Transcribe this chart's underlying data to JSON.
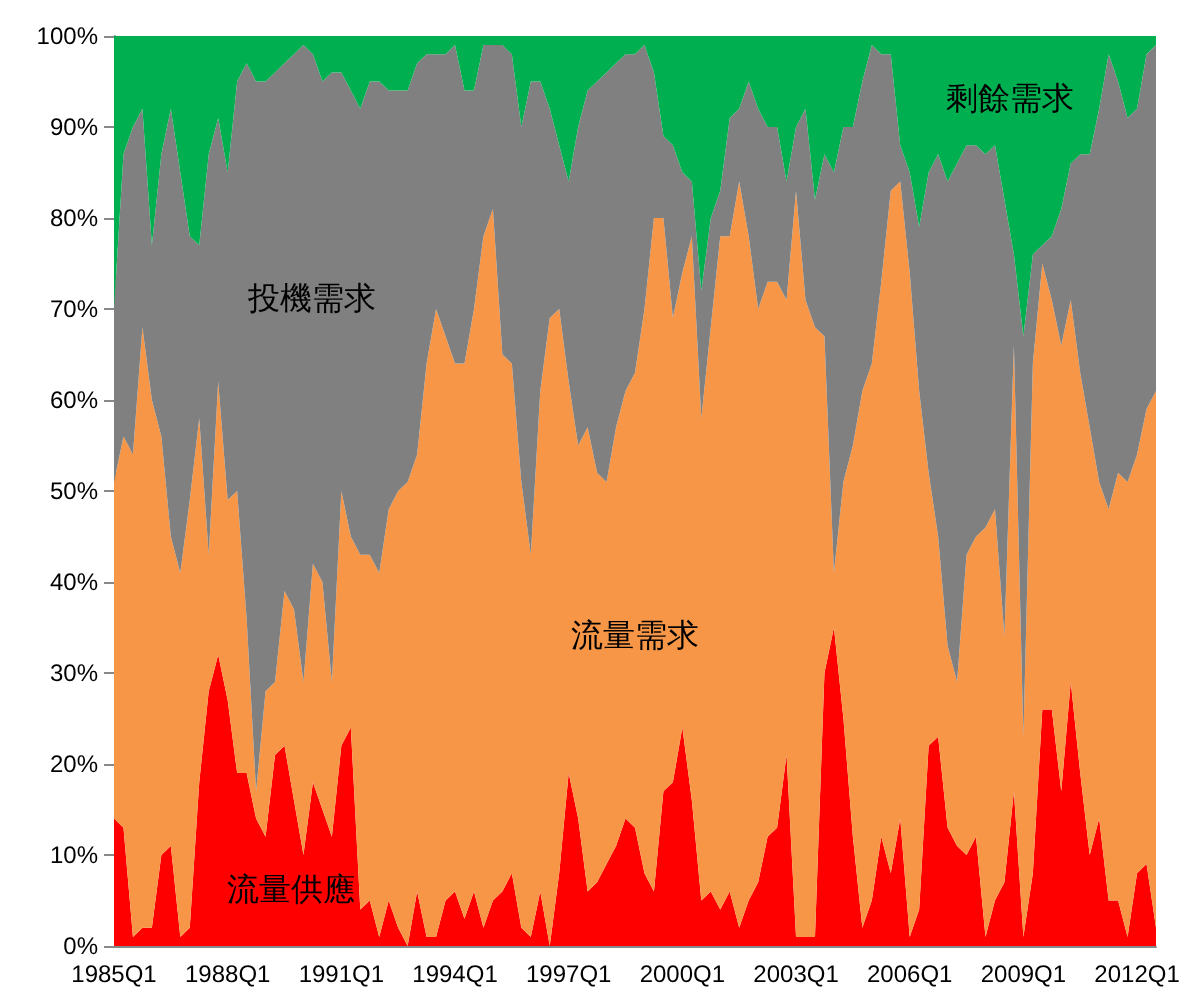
{
  "chart_data": {
    "type": "area",
    "stacked": true,
    "categories": [
      "1985Q1",
      null,
      null,
      null,
      null,
      null,
      null,
      null,
      null,
      null,
      null,
      null,
      "1988Q1",
      null,
      null,
      null,
      null,
      null,
      null,
      null,
      null,
      null,
      null,
      null,
      "1991Q1",
      null,
      null,
      null,
      null,
      null,
      null,
      null,
      null,
      null,
      null,
      null,
      "1994Q1",
      null,
      null,
      null,
      null,
      null,
      null,
      null,
      null,
      null,
      null,
      null,
      "1997Q1",
      null,
      null,
      null,
      null,
      null,
      null,
      null,
      null,
      null,
      null,
      null,
      "2000Q1",
      null,
      null,
      null,
      null,
      null,
      null,
      null,
      null,
      null,
      null,
      null,
      "2003Q1",
      null,
      null,
      null,
      null,
      null,
      null,
      null,
      null,
      null,
      null,
      null,
      "2006Q1",
      null,
      null,
      null,
      null,
      null,
      null,
      null,
      null,
      null,
      null,
      null,
      "2009Q1",
      null,
      null,
      null,
      null,
      null,
      null,
      null,
      null,
      null,
      null,
      null,
      "2012Q1",
      null,
      null
    ],
    "series": [
      {
        "name": "流量供應",
        "color": "#ff0000",
        "values": [
          14,
          13,
          1,
          2,
          2,
          10,
          11,
          1,
          2,
          18,
          28,
          32,
          27,
          19,
          19,
          14,
          12,
          21,
          22,
          16,
          10,
          18,
          15,
          12,
          22,
          24,
          4,
          5,
          1,
          5,
          2,
          0,
          6,
          1,
          1,
          5,
          6,
          3,
          6,
          2,
          5,
          6,
          8,
          2,
          1,
          6,
          0,
          8,
          19,
          14,
          6,
          7,
          9,
          11,
          14,
          13,
          8,
          6,
          17,
          18,
          24,
          16,
          5,
          6,
          4,
          6,
          2,
          5,
          7,
          12,
          13,
          21,
          1,
          1,
          1,
          30,
          35,
          25,
          12,
          2,
          5,
          12,
          8,
          14,
          1,
          4,
          22,
          23,
          13,
          11,
          10,
          12,
          1,
          5,
          7,
          17,
          1,
          8,
          26,
          26,
          17,
          29,
          19,
          10,
          14,
          5,
          5,
          1,
          8,
          9,
          2
        ]
      },
      {
        "name": "流量需求",
        "color": "#f79646",
        "values": [
          37,
          43,
          53,
          66,
          58,
          46,
          34,
          40,
          47,
          40,
          15,
          30,
          22,
          31,
          17,
          3,
          16,
          8,
          17,
          21,
          19,
          24,
          25,
          17,
          28,
          21,
          39,
          38,
          40,
          43,
          48,
          51,
          48,
          63,
          69,
          62,
          58,
          61,
          64,
          76,
          76,
          59,
          56,
          49,
          42,
          55,
          69,
          62,
          43,
          41,
          51,
          45,
          42,
          46,
          47,
          50,
          62,
          74,
          63,
          51,
          50,
          62,
          53,
          62,
          74,
          72,
          82,
          73,
          63,
          61,
          60,
          50,
          82,
          70,
          67,
          37,
          6,
          26,
          43,
          59,
          59,
          61,
          75,
          70,
          73,
          57,
          30,
          22,
          20,
          18,
          33,
          33,
          45,
          43,
          27,
          49,
          22,
          56,
          49,
          45,
          49,
          42,
          44,
          47,
          37,
          43,
          47,
          50,
          46,
          50,
          59
        ]
      },
      {
        "name": "投機需求",
        "color": "#808080",
        "values": [
          19,
          31,
          36,
          24,
          17,
          31,
          47,
          44,
          29,
          19,
          44,
          29,
          36,
          45,
          61,
          78,
          67,
          67,
          58,
          61,
          70,
          56,
          55,
          67,
          46,
          49,
          49,
          52,
          54,
          46,
          44,
          43,
          43,
          34,
          28,
          31,
          35,
          30,
          24,
          21,
          18,
          34,
          34,
          39,
          52,
          34,
          23,
          18,
          22,
          35,
          37,
          43,
          45,
          40,
          37,
          35,
          29,
          16,
          9,
          19,
          11,
          6,
          14,
          12,
          5,
          13,
          8,
          17,
          22,
          17,
          17,
          13,
          7,
          21,
          14,
          20,
          44,
          39,
          35,
          34,
          35,
          25,
          15,
          4,
          11,
          18,
          33,
          42,
          51,
          57,
          45,
          43,
          41,
          40,
          48,
          10,
          44,
          12,
          2,
          7,
          15,
          15,
          24,
          30,
          41,
          50,
          43,
          40,
          38,
          39,
          38
        ]
      },
      {
        "name": "剩餘需求",
        "color": "#00b050",
        "values": [
          30,
          13,
          10,
          8,
          23,
          13,
          8,
          15,
          22,
          23,
          13,
          9,
          15,
          5,
          3,
          5,
          5,
          4,
          3,
          2,
          1,
          2,
          5,
          4,
          4,
          6,
          8,
          5,
          5,
          6,
          6,
          6,
          3,
          2,
          2,
          2,
          1,
          6,
          6,
          1,
          1,
          1,
          2,
          10,
          5,
          5,
          8,
          12,
          16,
          10,
          6,
          5,
          4,
          3,
          2,
          2,
          1,
          4,
          11,
          12,
          15,
          16,
          28,
          20,
          17,
          9,
          8,
          5,
          8,
          10,
          10,
          16,
          10,
          8,
          18,
          13,
          15,
          10,
          10,
          5,
          1,
          2,
          2,
          12,
          15,
          21,
          15,
          13,
          16,
          14,
          12,
          12,
          13,
          12,
          18,
          24,
          33,
          24,
          23,
          22,
          19,
          14,
          13,
          13,
          8,
          2,
          5,
          9,
          8,
          2,
          1
        ]
      }
    ],
    "ylim": [
      0,
      100
    ],
    "yticks": [
      {
        "value": 0,
        "label": "0%"
      },
      {
        "value": 10,
        "label": "10%"
      },
      {
        "value": 20,
        "label": "20%"
      },
      {
        "value": 30,
        "label": "30%"
      },
      {
        "value": 40,
        "label": "40%"
      },
      {
        "value": 50,
        "label": "50%"
      },
      {
        "value": 60,
        "label": "60%"
      },
      {
        "value": 70,
        "label": "70%"
      },
      {
        "value": 80,
        "label": "80%"
      },
      {
        "value": 90,
        "label": "90%"
      },
      {
        "value": 100,
        "label": "100%"
      }
    ],
    "grid": false,
    "legend": false
  }
}
